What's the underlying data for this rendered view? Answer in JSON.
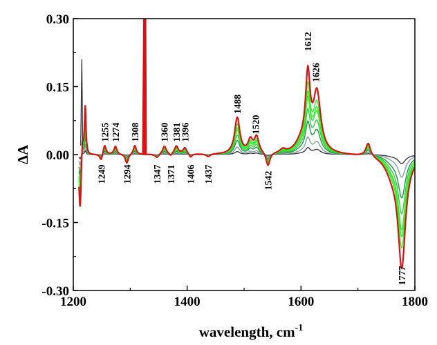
{
  "chart_data": {
    "type": "line",
    "xlabel": "wavelength, cm",
    "xlabel_sup": "-1",
    "ylabel": "ΔA",
    "xlim": [
      1200,
      1800
    ],
    "ylim": [
      -0.3,
      0.3
    ],
    "xticks": [
      1200,
      1400,
      1600,
      1800
    ],
    "xtick_labels": [
      "1200",
      "1400",
      "1600",
      "1800"
    ],
    "yticks": [
      0.3,
      0.15,
      0.0,
      -0.15,
      -0.3
    ],
    "ytick_labels": [
      "0.30",
      "0.15",
      "0.00",
      "-0.15",
      "-0.30"
    ],
    "grid": false,
    "legend": "none",
    "peak_labels": [
      {
        "text": "1255",
        "x": 1255,
        "position": "above"
      },
      {
        "text": "1274",
        "x": 1274,
        "position": "above"
      },
      {
        "text": "1308",
        "x": 1308,
        "position": "above"
      },
      {
        "text": "1360",
        "x": 1360,
        "position": "above"
      },
      {
        "text": "1381",
        "x": 1381,
        "position": "above"
      },
      {
        "text": "1396",
        "x": 1396,
        "position": "above"
      },
      {
        "text": "1488",
        "x": 1488,
        "position": "above"
      },
      {
        "text": "1520",
        "x": 1520,
        "position": "above"
      },
      {
        "text": "1612",
        "x": 1612,
        "position": "above"
      },
      {
        "text": "1626",
        "x": 1626,
        "position": "above"
      },
      {
        "text": "1249",
        "x": 1249,
        "position": "below"
      },
      {
        "text": "1294",
        "x": 1294,
        "position": "below"
      },
      {
        "text": "1347",
        "x": 1347,
        "position": "below"
      },
      {
        "text": "1371",
        "x": 1371,
        "position": "below"
      },
      {
        "text": "1406",
        "x": 1406,
        "position": "below"
      },
      {
        "text": "1437",
        "x": 1437,
        "position": "below"
      },
      {
        "text": "1542",
        "x": 1542,
        "position": "below"
      },
      {
        "text": "1777",
        "x": 1777,
        "position": "below"
      }
    ],
    "series_colors": [
      "#3a3a3a",
      "#7f9fa4",
      "#1a9641",
      "#36c83c",
      "#33e32f",
      "#2cee2c",
      "#22ff22",
      "#dd1111"
    ],
    "series_scales": [
      0.08,
      0.2,
      0.38,
      0.52,
      0.66,
      0.82,
      0.72,
      1.0
    ],
    "peaks": [
      {
        "x": 1212,
        "a": -0.13,
        "w": 2.5
      },
      {
        "x": 1216,
        "a": 0.05,
        "w": 2.2
      },
      {
        "x": 1221,
        "a": 0.11,
        "w": 1.6
      },
      {
        "x": 1249,
        "a": -0.015,
        "w": 3
      },
      {
        "x": 1255,
        "a": 0.022,
        "w": 3
      },
      {
        "x": 1274,
        "a": 0.018,
        "w": 3
      },
      {
        "x": 1294,
        "a": -0.02,
        "w": 3
      },
      {
        "x": 1308,
        "a": 0.02,
        "w": 3
      },
      {
        "x": 1347,
        "a": -0.008,
        "w": 4
      },
      {
        "x": 1360,
        "a": 0.018,
        "w": 4
      },
      {
        "x": 1371,
        "a": -0.006,
        "w": 3
      },
      {
        "x": 1381,
        "a": 0.018,
        "w": 4
      },
      {
        "x": 1396,
        "a": 0.014,
        "w": 4
      },
      {
        "x": 1406,
        "a": -0.008,
        "w": 3
      },
      {
        "x": 1437,
        "a": -0.006,
        "w": 4
      },
      {
        "x": 1488,
        "a": 0.08,
        "w": 5.5
      },
      {
        "x": 1511,
        "a": 0.028,
        "w": 5
      },
      {
        "x": 1522,
        "a": 0.036,
        "w": 5
      },
      {
        "x": 1542,
        "a": -0.03,
        "w": 4
      },
      {
        "x": 1568,
        "a": 0.008,
        "w": 6
      },
      {
        "x": 1612,
        "a": 0.16,
        "w": 5
      },
      {
        "x": 1628,
        "a": 0.13,
        "w": 8
      },
      {
        "x": 1600,
        "a": 0.02,
        "w": 12
      },
      {
        "x": 1718,
        "a": 0.03,
        "w": 5
      },
      {
        "x": 1777,
        "a": -0.24,
        "w": 8
      },
      {
        "x": 1760,
        "a": -0.03,
        "w": 14
      }
    ]
  }
}
